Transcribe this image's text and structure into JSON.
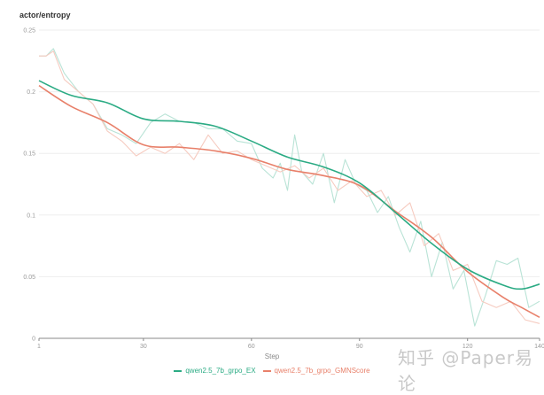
{
  "chart_data": {
    "type": "line",
    "title": "actor/entropy",
    "xlabel": "Step",
    "ylabel": "",
    "xlim": [
      1,
      140
    ],
    "ylim": [
      0,
      0.25
    ],
    "xticks": [
      1,
      30,
      60,
      90,
      120,
      140
    ],
    "yticks": [
      0,
      0.05,
      0.1,
      0.15,
      0.2,
      0.25
    ],
    "ytick_labels": [
      "0",
      "0.05",
      "0.1",
      "0.15",
      "0.2",
      "0.25"
    ],
    "grid": true,
    "legend_position": "bottom-center",
    "x": [
      1,
      10,
      20,
      30,
      40,
      50,
      60,
      70,
      80,
      90,
      100,
      110,
      120,
      130,
      135,
      140
    ],
    "series": [
      {
        "name": "qwen2.5_7b_grpo_EX",
        "color": "#2bab84",
        "smoothed": true,
        "values": [
          0.209,
          0.197,
          0.191,
          0.178,
          0.176,
          0.172,
          0.16,
          0.147,
          0.139,
          0.126,
          0.102,
          0.077,
          0.056,
          0.043,
          0.04,
          0.044
        ]
      },
      {
        "name": "qwen2.5_7b_grpo_GMNScore",
        "color": "#e8806a",
        "smoothed": true,
        "values": [
          0.205,
          0.188,
          0.175,
          0.157,
          0.155,
          0.152,
          0.146,
          0.137,
          0.132,
          0.124,
          0.103,
          0.082,
          0.054,
          0.033,
          0.025,
          0.017
        ]
      }
    ],
    "raw_series": [
      {
        "name": "qwen2.5_7b_grpo_EX (raw)",
        "color": "#b9e3d6",
        "x": [
          1,
          3,
          5,
          8,
          12,
          16,
          20,
          24,
          28,
          32,
          36,
          40,
          44,
          48,
          52,
          56,
          60,
          63,
          66,
          68,
          70,
          72,
          74,
          77,
          80,
          83,
          86,
          89,
          92,
          95,
          98,
          101,
          104,
          107,
          110,
          113,
          116,
          119,
          122,
          125,
          128,
          131,
          134,
          137,
          140
        ],
        "values": [
          0.229,
          0.229,
          0.235,
          0.215,
          0.2,
          0.19,
          0.17,
          0.165,
          0.158,
          0.175,
          0.182,
          0.176,
          0.175,
          0.17,
          0.17,
          0.16,
          0.158,
          0.138,
          0.13,
          0.142,
          0.12,
          0.165,
          0.135,
          0.125,
          0.15,
          0.11,
          0.145,
          0.125,
          0.12,
          0.102,
          0.115,
          0.09,
          0.07,
          0.095,
          0.05,
          0.078,
          0.04,
          0.055,
          0.01,
          0.035,
          0.063,
          0.06,
          0.065,
          0.025,
          0.03
        ]
      },
      {
        "name": "qwen2.5_7b_grpo_GMNScore (raw)",
        "color": "#f6cbc0",
        "x": [
          1,
          3,
          5,
          8,
          12,
          16,
          20,
          24,
          28,
          32,
          36,
          40,
          44,
          48,
          52,
          56,
          60,
          64,
          68,
          72,
          76,
          80,
          84,
          88,
          92,
          96,
          100,
          104,
          108,
          112,
          116,
          120,
          124,
          128,
          132,
          136,
          140
        ],
        "values": [
          0.229,
          0.229,
          0.233,
          0.21,
          0.2,
          0.19,
          0.168,
          0.16,
          0.148,
          0.155,
          0.15,
          0.158,
          0.145,
          0.165,
          0.15,
          0.152,
          0.145,
          0.14,
          0.135,
          0.14,
          0.13,
          0.138,
          0.12,
          0.128,
          0.115,
          0.12,
          0.1,
          0.11,
          0.075,
          0.085,
          0.055,
          0.06,
          0.03,
          0.025,
          0.03,
          0.015,
          0.012
        ]
      }
    ]
  },
  "header": {
    "title": "actor/entropy"
  },
  "axis": {
    "xlabel": "Step"
  },
  "legend": {
    "items": [
      {
        "label": "qwen2.5_7b_grpo_EX",
        "color": "#2bab84"
      },
      {
        "label": "qwen2.5_7b_grpo_GMNScore",
        "color": "#e8806a"
      }
    ]
  },
  "watermark": "知乎 @Paper易论"
}
